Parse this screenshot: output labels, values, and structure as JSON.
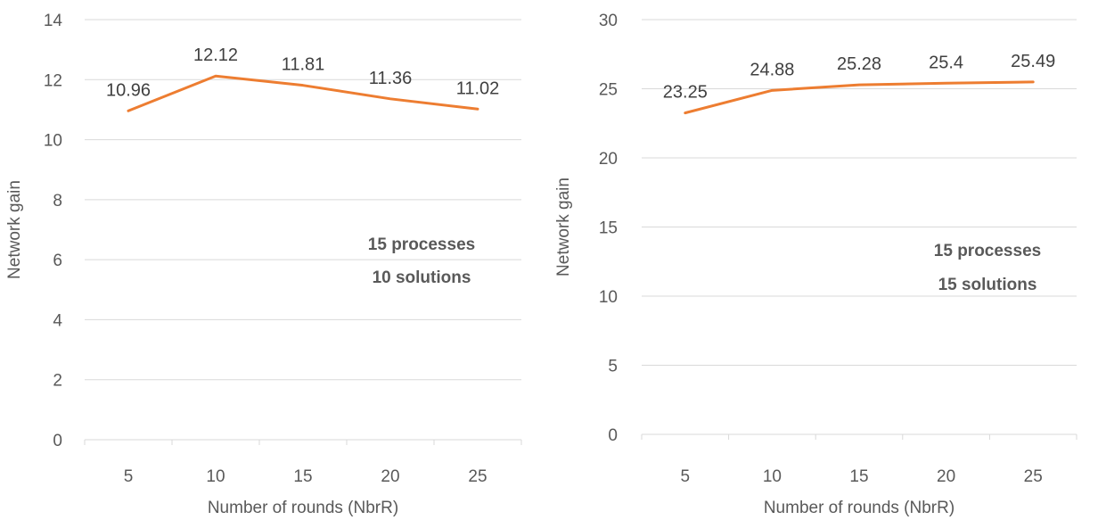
{
  "series_color": "#ED7D31",
  "chart_data": [
    {
      "type": "line",
      "x": [
        5,
        10,
        15,
        20,
        25
      ],
      "categories": [
        "5",
        "10",
        "15",
        "20",
        "25"
      ],
      "series": [
        {
          "values": [
            10.96,
            12.12,
            11.81,
            11.36,
            11.02
          ]
        }
      ],
      "data_labels": [
        "10.96",
        "12.12",
        "11.81",
        "11.36",
        "11.02"
      ],
      "xlabel": "Number of rounds (NbrR)",
      "ylabel": "Network gain",
      "ylim": [
        0,
        14
      ],
      "yticks": [
        "0",
        "2",
        "4",
        "6",
        "8",
        "10",
        "12",
        "14"
      ],
      "grid": true,
      "annotations": [
        "15 processes",
        "10 solutions"
      ]
    },
    {
      "type": "line",
      "x": [
        5,
        10,
        15,
        20,
        25
      ],
      "categories": [
        "5",
        "10",
        "15",
        "20",
        "25"
      ],
      "series": [
        {
          "values": [
            23.25,
            24.88,
            25.28,
            25.4,
            25.49
          ]
        }
      ],
      "data_labels": [
        "23.25",
        "24.88",
        "25.28",
        "25.4",
        "25.49"
      ],
      "xlabel": "Number of rounds (NbrR)",
      "ylabel": "Network gain",
      "ylim": [
        0,
        30
      ],
      "yticks": [
        "0",
        "5",
        "10",
        "15",
        "20",
        "25",
        "30"
      ],
      "grid": true,
      "annotations": [
        "15 processes",
        "15 solutions"
      ]
    }
  ]
}
